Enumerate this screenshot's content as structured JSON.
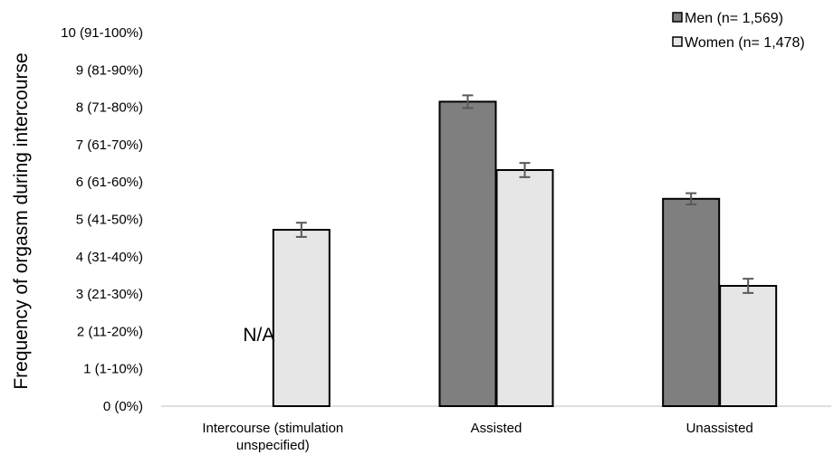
{
  "chart_data": {
    "type": "bar",
    "title": "",
    "ylabel": "Frequency of orgasm during intercourse",
    "xlabel": "",
    "ylim": [
      0,
      10
    ],
    "y_ticks": [
      {
        "value": 0,
        "label": "0 (0%)"
      },
      {
        "value": 1,
        "label": "1 (1-10%)"
      },
      {
        "value": 2,
        "label": "2 (11-20%)"
      },
      {
        "value": 3,
        "label": "3 (21-30%)"
      },
      {
        "value": 4,
        "label": "4 (31-40%)"
      },
      {
        "value": 5,
        "label": "5 (41-50%)"
      },
      {
        "value": 6,
        "label": "6 (61-60%)"
      },
      {
        "value": 7,
        "label": "7 (61-70%)"
      },
      {
        "value": 8,
        "label": "8 (71-80%)"
      },
      {
        "value": 9,
        "label": "9 (81-90%)"
      },
      {
        "value": 10,
        "label": "10 (91-100%)"
      }
    ],
    "categories": [
      [
        "Intercourse (stimulation",
        "unspecified)"
      ],
      [
        "Assisted"
      ],
      [
        "Unassisted"
      ]
    ],
    "series": [
      {
        "name": "Men (n= 1,569)",
        "color": "#7f7f7f",
        "values": [
          null,
          8.15,
          5.55
        ],
        "errors": [
          null,
          0.17,
          0.15
        ]
      },
      {
        "name": "Women (n= 1,478)",
        "color": "#e6e6e6",
        "values": [
          4.72,
          6.32,
          3.22
        ],
        "errors": [
          0.19,
          0.19,
          0.19
        ]
      }
    ],
    "annotations": [
      {
        "text": "N/A",
        "category": 0,
        "series": 0
      }
    ],
    "legend_position": "top-right",
    "grid": false
  }
}
